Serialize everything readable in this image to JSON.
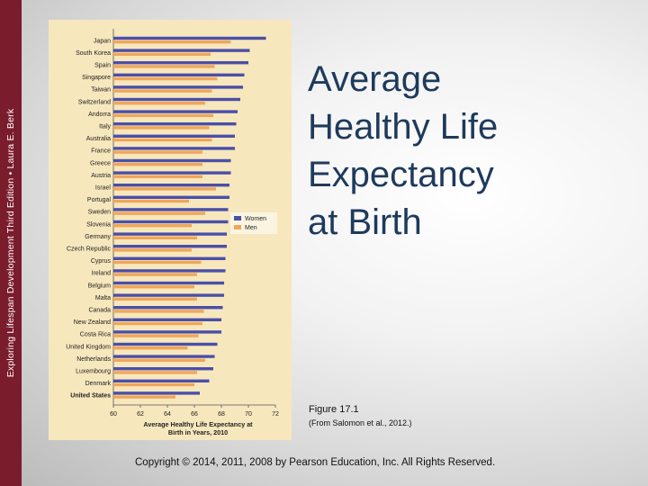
{
  "sidebar": {
    "text": "Exploring Lifespan Development Third Edition • Laura E. Berk"
  },
  "slide": {
    "title": "Average\nHealthy Life\nExpectancy\nat Birth",
    "figure_label": "Figure 17.1",
    "figure_source": "(From Salomon et al., 2012.)",
    "copyright": "Copyright © 2014, 2011, 2008 by Pearson Education, Inc. All Rights Reserved."
  },
  "colors": {
    "women": "#4a4fa8",
    "men": "#f0a65a",
    "panel": "#f7e7bd",
    "sidebar": "#7a1c2c",
    "title": "#1e3a5c"
  },
  "chart_data": {
    "type": "bar",
    "orientation": "horizontal",
    "xlabel": "Average Healthy Life Expectancy at Birth in Years, 2010",
    "xlim": [
      60,
      72
    ],
    "xticks": [
      60,
      62,
      64,
      66,
      68,
      70,
      72
    ],
    "legend_position": "right",
    "grid": false,
    "categories": [
      "Japan",
      "South Korea",
      "Spain",
      "Singapore",
      "Taiwan",
      "Switzerland",
      "Andorra",
      "Italy",
      "Australia",
      "France",
      "Greece",
      "Austria",
      "Israel",
      "Portugal",
      "Sweden",
      "Slovenia",
      "Germany",
      "Czech Republic",
      "Cyprus",
      "Ireland",
      "Belgium",
      "Malta",
      "Canada",
      "New Zealand",
      "Costa Rica",
      "United Kingdom",
      "Netherlands",
      "Luxembourg",
      "Denmark",
      "United States"
    ],
    "series": [
      {
        "name": "Women",
        "values": [
          71.3,
          70.1,
          70.0,
          69.7,
          69.6,
          69.4,
          69.2,
          69.1,
          69.0,
          69.0,
          68.7,
          68.7,
          68.6,
          68.6,
          68.5,
          68.5,
          68.4,
          68.4,
          68.3,
          68.3,
          68.2,
          68.2,
          68.1,
          68.0,
          68.0,
          67.7,
          67.5,
          67.4,
          67.1,
          66.4
        ]
      },
      {
        "name": "Men",
        "values": [
          68.7,
          67.2,
          67.5,
          67.7,
          67.3,
          66.8,
          67.4,
          67.1,
          67.3,
          66.6,
          66.6,
          66.6,
          67.6,
          65.6,
          66.8,
          65.8,
          66.2,
          65.8,
          66.5,
          66.2,
          66.0,
          66.2,
          66.7,
          66.6,
          66.3,
          65.5,
          66.8,
          66.2,
          66.0,
          64.6
        ]
      }
    ]
  }
}
